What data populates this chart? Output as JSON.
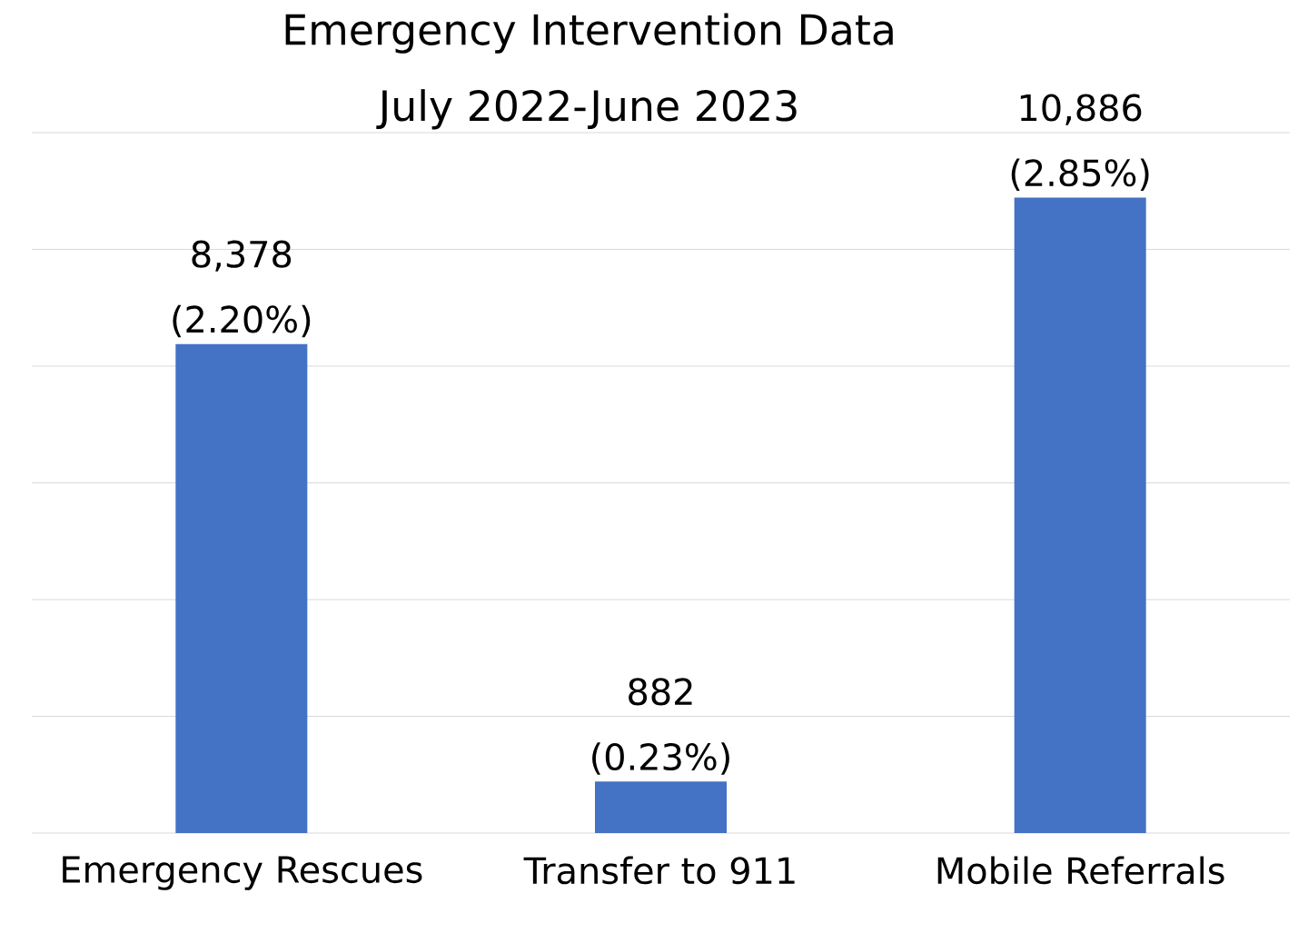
{
  "chart_data": {
    "type": "bar",
    "title": "Emergency Intervention Data",
    "subtitle": "July 2022-June 2023",
    "categories": [
      "Emergency Rescues",
      "Transfer to 911",
      "Mobile Referrals"
    ],
    "values": [
      8378,
      882,
      10886
    ],
    "value_labels": [
      "8,378 (2.20%)",
      "882 (0.23%)",
      "10,886 (2.85%)"
    ],
    "color": "#4472c4",
    "ylim": [
      0,
      12000
    ],
    "yticks": [
      {
        "value": 0,
        "label": null
      },
      {
        "value": 2000,
        "label": null
      },
      {
        "value": 4000,
        "label": null
      },
      {
        "value": 6000,
        "label": null
      },
      {
        "value": 8000,
        "label": null
      },
      {
        "value": 10000,
        "label": null
      },
      {
        "value": 12000,
        "label": null
      }
    ],
    "tick_labels": "x",
    "grid": "y"
  }
}
